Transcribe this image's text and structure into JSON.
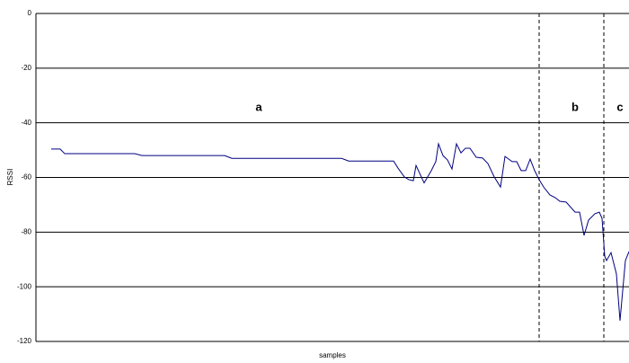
{
  "chart_data": {
    "type": "line",
    "xlabel": "samples",
    "ylabel": "RSSI",
    "x": [
      0,
      10,
      15,
      93,
      101,
      193,
      201,
      323,
      331,
      381,
      386,
      393,
      398,
      403,
      406,
      415,
      423,
      428,
      431,
      436,
      441,
      446,
      451,
      456,
      461,
      466,
      473,
      480,
      486,
      493,
      500,
      505,
      513,
      518,
      523,
      528,
      533,
      538,
      543,
      548,
      555,
      561,
      566,
      573,
      583,
      588,
      593,
      598,
      605,
      610,
      613,
      616,
      618,
      623,
      629,
      633,
      639,
      643
    ],
    "values": [
      -49.6,
      -49.6,
      -51.3,
      -51.3,
      -52,
      -52,
      -53,
      -53,
      -54,
      -54,
      -56.6,
      -59.8,
      -60.8,
      -61.2,
      -55.6,
      -62,
      -57.5,
      -54.2,
      -47.7,
      -52,
      -53.6,
      -56.9,
      -47.7,
      -51,
      -49.3,
      -49.3,
      -52.6,
      -52.9,
      -54.9,
      -59.8,
      -63.5,
      -52.3,
      -54.2,
      -54.2,
      -57.5,
      -57.5,
      -53.3,
      -57.5,
      -60.8,
      -63.5,
      -66.4,
      -67.4,
      -68.7,
      -69,
      -72.7,
      -72.7,
      -81.2,
      -75.6,
      -73.3,
      -72.7,
      -75,
      -88.8,
      -90.4,
      -87.5,
      -95.3,
      -112.4,
      -90.4,
      -87.1
    ],
    "color": "#000080",
    "xlim": [
      -17,
      643
    ],
    "ylim": [
      -120,
      0
    ],
    "yticks": [
      0,
      -20,
      -40,
      -60,
      -80,
      -100,
      -120
    ],
    "grid": true,
    "vlines": [
      543,
      615
    ],
    "annotations": [
      "a",
      "b",
      "c"
    ]
  }
}
